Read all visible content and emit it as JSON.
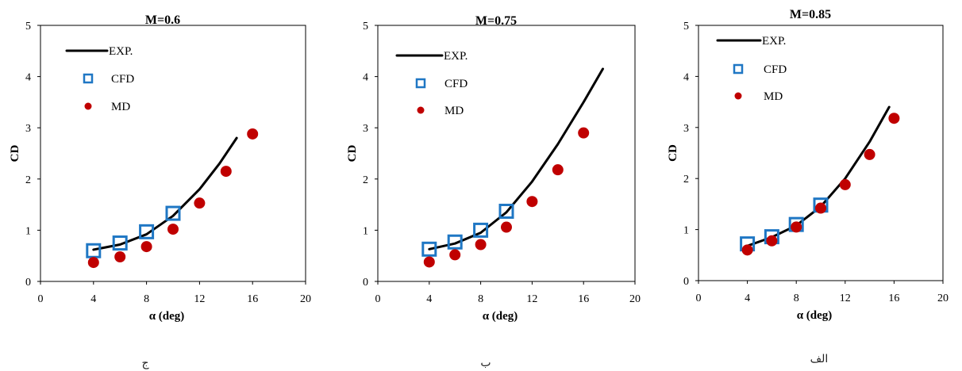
{
  "colors": {
    "exp": "#000000",
    "cfd": "#1f77c4",
    "md": "#c00000"
  },
  "chart_data": [
    {
      "type": "line",
      "title": "M=0.6",
      "caption": "ج",
      "xlabel": "α (deg)",
      "ylabel": "CD",
      "xlim": [
        0,
        20
      ],
      "ylim": [
        0,
        5
      ],
      "xticks": [
        "0",
        "4",
        "8",
        "12",
        "16",
        "20"
      ],
      "yticks": [
        "0",
        "1",
        "2",
        "3",
        "4",
        "5"
      ],
      "legend": [
        "EXP.",
        "CFD",
        "MD"
      ],
      "series": [
        {
          "name": "EXP.",
          "kind": "line",
          "x": [
            4,
            6,
            8,
            10,
            12,
            13.5,
            14.8
          ],
          "y": [
            0.62,
            0.72,
            0.92,
            1.28,
            1.8,
            2.3,
            2.8
          ]
        },
        {
          "name": "CFD",
          "kind": "square",
          "x": [
            4,
            6,
            8,
            10
          ],
          "y": [
            0.6,
            0.75,
            0.97,
            1.33
          ]
        },
        {
          "name": "MD",
          "kind": "circle",
          "x": [
            4,
            6,
            8,
            10,
            12,
            14,
            16
          ],
          "y": [
            0.37,
            0.48,
            0.68,
            1.02,
            1.53,
            2.15,
            2.88
          ]
        }
      ]
    },
    {
      "type": "line",
      "title": "M=0.75",
      "caption": "ب",
      "xlabel": "α (deg)",
      "ylabel": "CD",
      "xlim": [
        0,
        20
      ],
      "ylim": [
        0,
        5
      ],
      "xticks": [
        "0",
        "4",
        "8",
        "12",
        "16",
        "20"
      ],
      "yticks": [
        "0",
        "1",
        "2",
        "3",
        "4",
        "5"
      ],
      "legend": [
        "EXP.",
        "CFD",
        "MD"
      ],
      "series": [
        {
          "name": "EXP.",
          "kind": "line",
          "x": [
            4,
            6,
            8,
            10,
            12,
            14,
            16,
            17.5
          ],
          "y": [
            0.63,
            0.74,
            0.95,
            1.35,
            1.95,
            2.68,
            3.5,
            4.15
          ]
        },
        {
          "name": "CFD",
          "kind": "square",
          "x": [
            4,
            6,
            8,
            10
          ],
          "y": [
            0.63,
            0.77,
            1.0,
            1.37
          ]
        },
        {
          "name": "MD",
          "kind": "circle",
          "x": [
            4,
            6,
            8,
            10,
            12,
            14,
            16
          ],
          "y": [
            0.38,
            0.52,
            0.72,
            1.06,
            1.56,
            2.18,
            2.9
          ]
        }
      ]
    },
    {
      "type": "line",
      "title": "M=0.85",
      "caption": "الف",
      "xlabel": "α (deg)",
      "ylabel": "CD",
      "xlim": [
        0,
        20
      ],
      "ylim": [
        0,
        5
      ],
      "xticks": [
        "0",
        "4",
        "8",
        "12",
        "16",
        "20"
      ],
      "yticks": [
        "0",
        "1",
        "2",
        "3",
        "4",
        "5"
      ],
      "legend": [
        "EXP.",
        "CFD",
        "MD"
      ],
      "series": [
        {
          "name": "EXP.",
          "kind": "line",
          "x": [
            4,
            6,
            8,
            10,
            12,
            14,
            15.6
          ],
          "y": [
            0.68,
            0.85,
            1.08,
            1.45,
            2.0,
            2.72,
            3.4
          ]
        },
        {
          "name": "CFD",
          "kind": "square",
          "x": [
            4,
            6,
            8,
            10
          ],
          "y": [
            0.72,
            0.86,
            1.1,
            1.48
          ]
        },
        {
          "name": "MD",
          "kind": "circle",
          "x": [
            4,
            6,
            8,
            10,
            12,
            14,
            16
          ],
          "y": [
            0.6,
            0.78,
            1.05,
            1.42,
            1.88,
            2.47,
            3.18
          ]
        }
      ]
    }
  ]
}
